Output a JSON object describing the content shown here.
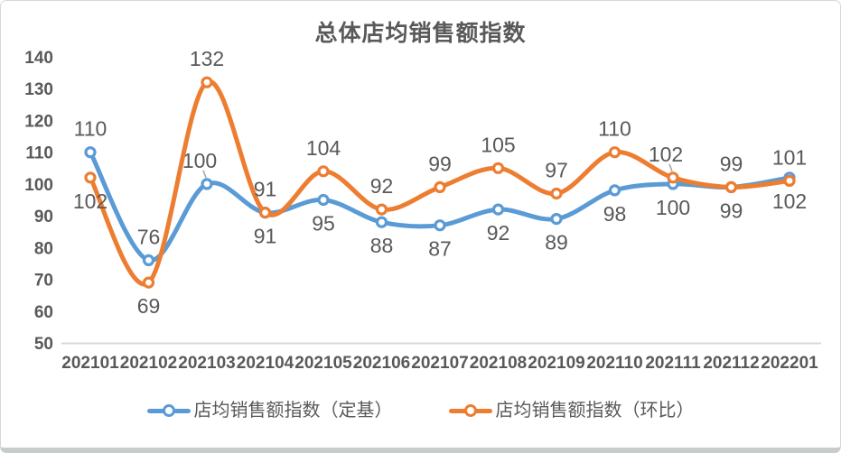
{
  "chart_data": {
    "type": "line",
    "title": "总体店均销售额指数",
    "categories": [
      "202101",
      "202102",
      "202103",
      "202104",
      "202105",
      "202106",
      "202107",
      "202108",
      "202109",
      "202110",
      "202111",
      "202112",
      "202201"
    ],
    "series": [
      {
        "name": "店均销售额指数（定基）",
        "color": "#5B9BD5",
        "values": [
          110,
          76,
          100,
          91,
          95,
          88,
          87,
          92,
          89,
          98,
          100,
          99,
          102
        ],
        "label_positions": [
          "above",
          "above",
          "above-leader",
          "below",
          "below",
          "below",
          "below",
          "below",
          "below",
          "below",
          "below",
          "below",
          "below"
        ]
      },
      {
        "name": "店均销售额指数（环比）",
        "color": "#ED7D31",
        "values": [
          102,
          69,
          132,
          91,
          104,
          92,
          99,
          105,
          97,
          110,
          102,
          99,
          101
        ],
        "label_positions": [
          "below",
          "below",
          "above",
          "above",
          "above",
          "above",
          "above",
          "above",
          "above",
          "above",
          "above-leader",
          "above",
          "above"
        ]
      }
    ],
    "ylim": [
      50,
      140
    ],
    "yticks": [
      50,
      60,
      70,
      80,
      90,
      100,
      110,
      120,
      130,
      140
    ],
    "xlabel": "",
    "ylabel": "",
    "grid": false,
    "smooth": true,
    "markers": "open-circle",
    "legend_position": "bottom",
    "text_color": "#595959",
    "data_label_color": "#595959",
    "axis_line_color": "#D9D9D9",
    "leader_line_color": "#A6A6A6",
    "card_border_color": "#D8D8D8",
    "card_shadow_color": "#C8CCCC"
  }
}
